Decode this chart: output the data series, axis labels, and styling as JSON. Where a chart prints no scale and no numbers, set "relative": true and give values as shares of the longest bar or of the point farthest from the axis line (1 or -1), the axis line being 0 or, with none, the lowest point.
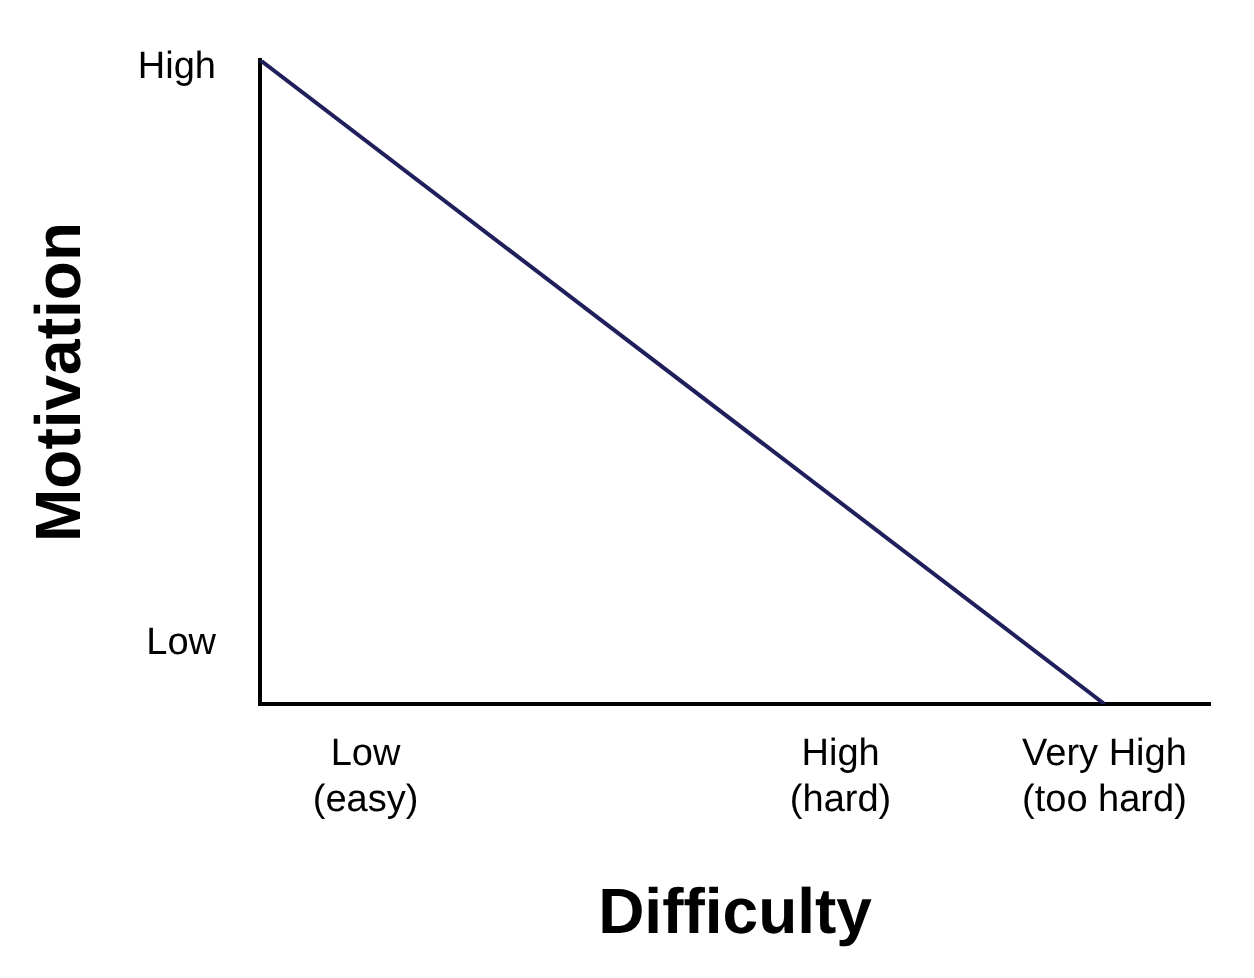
{
  "chart_data": {
    "type": "line",
    "xlabel": "Difficulty",
    "ylabel": "Motivation",
    "relative": true,
    "categories": [
      null,
      null,
      "Low\n(easy)",
      null,
      null,
      null,
      null,
      null,
      null,
      null,
      null,
      "High\n(hard)",
      null,
      null,
      null,
      null,
      "Very High\n(too hard)",
      null,
      null
    ],
    "series": [
      {
        "color": "#1f1f5c",
        "values": [
          1,
          null,
          null,
          null,
          null,
          null,
          null,
          null,
          null,
          null,
          null,
          null,
          null,
          null,
          null,
          null,
          0,
          null,
          null
        ]
      }
    ],
    "annotations": [
      "High",
      "Low"
    ],
    "grid": false,
    "legend": false,
    "marker": "none",
    "line_style": "solid"
  }
}
